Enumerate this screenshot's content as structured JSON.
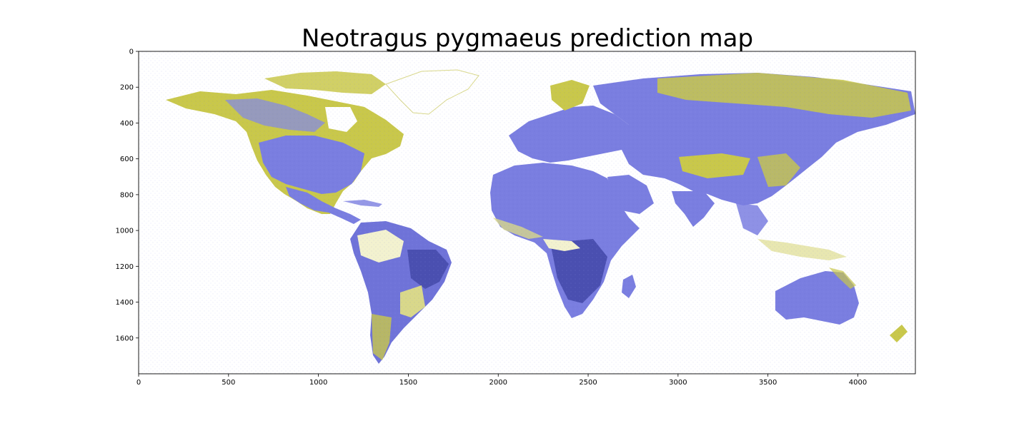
{
  "title": "Neotragus pygmaeus prediction map",
  "colors": {
    "land_low": "#c9c84a",
    "land_high": "#7a7ee0",
    "land_very_high": "#3a3f9a",
    "pale": "#f3f2cf",
    "frame": "#000000"
  },
  "axes": {
    "x_range": [
      0,
      4320
    ],
    "y_range": [
      0,
      1800
    ],
    "y_inverted": true,
    "x_ticks": [
      "0",
      "500",
      "1000",
      "1500",
      "2000",
      "2500",
      "3000",
      "3500",
      "4000"
    ],
    "y_ticks": [
      "0",
      "200",
      "400",
      "600",
      "800",
      "1000",
      "1200",
      "1400",
      "1600"
    ]
  }
}
